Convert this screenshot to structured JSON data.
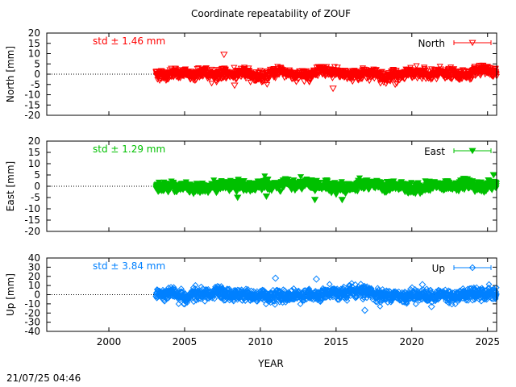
{
  "chart_data": {
    "title": "Coordinate repeatability of ZOUF",
    "xlabel": "YEAR",
    "x_ticks": [
      2000,
      2005,
      2010,
      2015,
      2020,
      2025
    ],
    "x_range": [
      1995.9,
      2025.6
    ],
    "data_start": 2003.1,
    "data_end": 2025.6,
    "panels": [
      {
        "type": "scatter",
        "name": "North",
        "ylabel": "North [mm]",
        "std_label": "std ± 1.46 mm",
        "color": "#ff0000",
        "marker": "triangle-down-open",
        "y_ticks": [
          20,
          15,
          10,
          5,
          0,
          -5,
          -10,
          -15,
          -20
        ],
        "ylim": [
          -20,
          20
        ],
        "std": 1.46,
        "outliers": [
          [
            2007.6,
            9.5
          ],
          [
            2008.3,
            -5.5
          ],
          [
            2012.9,
            -3.5
          ],
          [
            2018.9,
            -5.0
          ],
          [
            2014.8,
            -7.0
          ]
        ]
      },
      {
        "type": "scatter",
        "name": "East",
        "ylabel": "East [mm]",
        "std_label": "std ± 1.29 mm",
        "color": "#00c000",
        "marker": "triangle-down-filled",
        "y_ticks": [
          20,
          15,
          10,
          5,
          0,
          -5,
          -10,
          -15,
          -20
        ],
        "ylim": [
          -20,
          20
        ],
        "std": 1.29,
        "outliers": [
          [
            2013.6,
            -6.0
          ],
          [
            2015.4,
            -6.0
          ],
          [
            2008.5,
            -5.0
          ],
          [
            2025.4,
            5.0
          ],
          [
            2010.4,
            -4.5
          ]
        ]
      },
      {
        "type": "scatter",
        "name": "Up",
        "ylabel": "Up [mm]",
        "std_label": "std ± 3.84 mm",
        "color": "#0080ff",
        "marker": "diamond-open",
        "y_ticks": [
          40,
          30,
          20,
          10,
          0,
          -10,
          -20,
          -30,
          -40
        ],
        "ylim": [
          -40,
          40
        ],
        "std": 3.84,
        "outliers": [
          [
            2011.0,
            18.0
          ],
          [
            2016.9,
            -17.0
          ],
          [
            2020.7,
            11.0
          ],
          [
            2013.7,
            17.0
          ],
          [
            2021.3,
            -13.0
          ],
          [
            2005.0,
            -10.0
          ]
        ]
      }
    ]
  },
  "footer": {
    "timestamp": "21/07/25 04:46"
  }
}
